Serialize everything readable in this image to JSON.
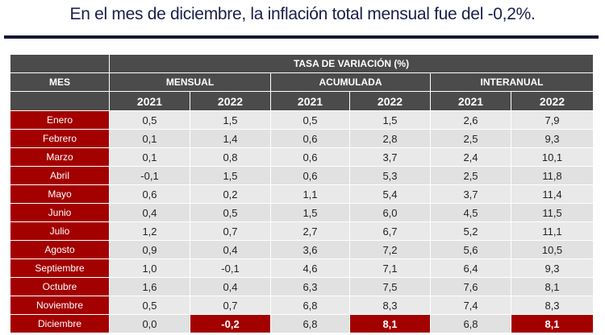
{
  "title": "En el mes de diciembre, la inflación total mensual fue del -0,2%.",
  "table": {
    "super_header": "TASA DE VARIACIÓN (%)",
    "mes_header": "MES",
    "groups": [
      "MENSUAL",
      "ACUMULADA",
      "INTERANUAL"
    ],
    "years": [
      "2021",
      "2022",
      "2021",
      "2022",
      "2021",
      "2022"
    ],
    "highlight_color": "#a30000",
    "rows": [
      {
        "mes": "Enero",
        "values": [
          "0,5",
          "1,5",
          "0,5",
          "1,5",
          "2,6",
          "7,9"
        ]
      },
      {
        "mes": "Febrero",
        "values": [
          "0,1",
          "1,4",
          "0,6",
          "2,8",
          "2,5",
          "9,3"
        ]
      },
      {
        "mes": "Marzo",
        "values": [
          "0,1",
          "0,8",
          "0,6",
          "3,7",
          "2,4",
          "10,1"
        ]
      },
      {
        "mes": "Abril",
        "values": [
          "-0,1",
          "1,5",
          "0,6",
          "5,3",
          "2,5",
          "11,8"
        ]
      },
      {
        "mes": "Mayo",
        "values": [
          "0,6",
          "0,2",
          "1,1",
          "5,4",
          "3,7",
          "11,4"
        ]
      },
      {
        "mes": "Junio",
        "values": [
          "0,4",
          "0,5",
          "1,5",
          "6,0",
          "4,5",
          "11,5"
        ]
      },
      {
        "mes": "Julio",
        "values": [
          "1,2",
          "0,7",
          "2,7",
          "6,7",
          "5,2",
          "11,1"
        ]
      },
      {
        "mes": "Agosto",
        "values": [
          "0,9",
          "0,4",
          "3,6",
          "7,2",
          "5,6",
          "10,5"
        ]
      },
      {
        "mes": "Septiembre",
        "values": [
          "1,0",
          "-0,1",
          "4,6",
          "7,1",
          "6,4",
          "9,3"
        ]
      },
      {
        "mes": "Octubre",
        "values": [
          "1,6",
          "0,4",
          "6,3",
          "7,5",
          "7,6",
          "8,1"
        ]
      },
      {
        "mes": "Noviembre",
        "values": [
          "0,5",
          "0,7",
          "6,8",
          "8,3",
          "7,4",
          "8,3"
        ]
      },
      {
        "mes": "Diciembre",
        "values": [
          "0,0",
          "-0,2",
          "6,8",
          "8,1",
          "6,8",
          "8,1"
        ],
        "highlighted_columns": [
          1,
          3,
          5
        ]
      }
    ]
  }
}
